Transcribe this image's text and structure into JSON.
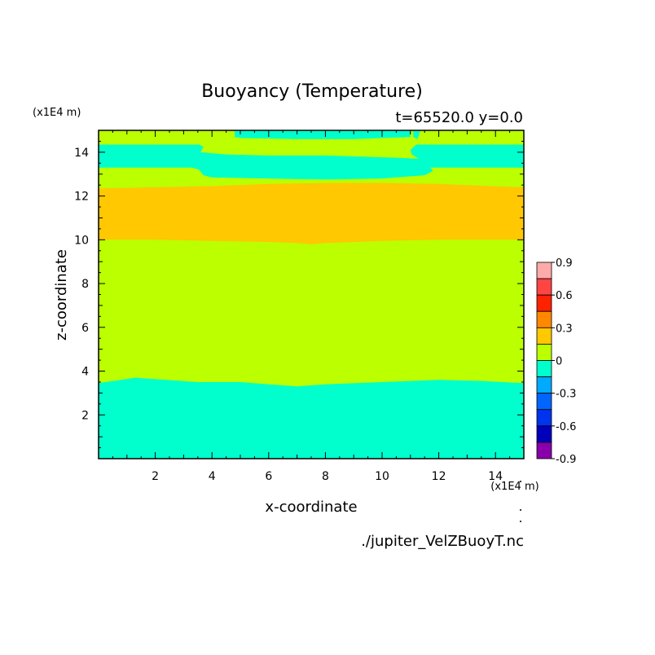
{
  "chart_data": {
    "type": "heatmap",
    "title": "Buoyancy (Temperature)",
    "subtitle": "t=65520.0 y=0.0",
    "xlabel": "x-coordinate",
    "ylabel": "z-coordinate",
    "x_unit": "(x1E4 m)",
    "y_unit": "(x1E4 m)",
    "xlim": [
      0,
      15
    ],
    "ylim": [
      0,
      15
    ],
    "x_ticks": [
      "2",
      "4",
      "6",
      "8",
      "10",
      "12",
      "14"
    ],
    "y_ticks": [
      "2",
      "4",
      "6",
      "8",
      "10",
      "12",
      "14"
    ],
    "background_level": "0 to 0.15",
    "regions": [
      {
        "name": "lower-cyan-layer",
        "level": "-0.15 to 0",
        "color": "#00ffcc",
        "polygon": [
          [
            0,
            0
          ],
          [
            15,
            0
          ],
          [
            15,
            3.45
          ],
          [
            13.5,
            3.55
          ],
          [
            12,
            3.6
          ],
          [
            10,
            3.5
          ],
          [
            8,
            3.4
          ],
          [
            7,
            3.3
          ],
          [
            6,
            3.4
          ],
          [
            5,
            3.5
          ],
          [
            3.5,
            3.5
          ],
          [
            1.3,
            3.7
          ],
          [
            0,
            3.45
          ]
        ]
      },
      {
        "name": "warm-band",
        "level": "0.15 to 0.3",
        "color": "#ffc800",
        "polygon": [
          [
            0,
            10
          ],
          [
            2,
            10
          ],
          [
            4,
            9.95
          ],
          [
            6,
            9.9
          ],
          [
            7,
            9.85
          ],
          [
            7.5,
            9.8
          ],
          [
            8,
            9.85
          ],
          [
            9,
            9.9
          ],
          [
            10,
            9.95
          ],
          [
            12,
            10
          ],
          [
            15,
            10
          ],
          [
            15,
            12.4
          ],
          [
            13,
            12.5
          ],
          [
            12,
            12.55
          ],
          [
            10,
            12.6
          ],
          [
            8,
            12.6
          ],
          [
            6,
            12.55
          ],
          [
            4,
            12.45
          ],
          [
            2,
            12.4
          ],
          [
            0,
            12.35
          ]
        ]
      },
      {
        "name": "upper-cyan-band",
        "level": "-0.15 to 0",
        "color": "#00ffcc",
        "polygon": [
          [
            0,
            13.3
          ],
          [
            3.3,
            13.3
          ],
          [
            3.55,
            13.2
          ],
          [
            3.7,
            12.95
          ],
          [
            4,
            12.85
          ],
          [
            6,
            12.8
          ],
          [
            8,
            12.75
          ],
          [
            10,
            12.8
          ],
          [
            11.5,
            12.95
          ],
          [
            11.8,
            13.15
          ],
          [
            11.7,
            13.3
          ],
          [
            15,
            13.3
          ],
          [
            15,
            14.35
          ],
          [
            11.2,
            14.35
          ],
          [
            11,
            14.1
          ],
          [
            11.05,
            13.9
          ],
          [
            11.3,
            13.7
          ],
          [
            10.5,
            13.75
          ],
          [
            8,
            13.85
          ],
          [
            6,
            13.85
          ],
          [
            4.5,
            13.9
          ],
          [
            3.6,
            14.0
          ],
          [
            3.7,
            14.25
          ],
          [
            3.55,
            14.35
          ],
          [
            0,
            14.35
          ]
        ]
      },
      {
        "name": "top-cyan-cap",
        "level": "-0.15 to 0",
        "color": "#00ffcc",
        "polygon": [
          [
            4.8,
            15
          ],
          [
            11,
            15
          ],
          [
            11,
            14.7
          ],
          [
            9,
            14.6
          ],
          [
            7,
            14.6
          ],
          [
            5,
            14.65
          ],
          [
            4.8,
            14.7
          ]
        ]
      },
      {
        "name": "top-left-green-notch",
        "level": "0 to 0.15",
        "color": "#bbff00",
        "polygon": [
          [
            3.9,
            15
          ],
          [
            4.8,
            15
          ],
          [
            4.8,
            14.7
          ],
          [
            3.9,
            14.7
          ]
        ]
      },
      {
        "name": "top-right-cyan-notch",
        "level": "-0.15 to 0",
        "color": "#00ffcc",
        "polygon": [
          [
            11.1,
            15
          ],
          [
            11.1,
            14.7
          ],
          [
            11.25,
            14.6
          ],
          [
            11.35,
            15
          ]
        ]
      }
    ],
    "colorbar": {
      "ticks": [
        "0.9",
        "0.6",
        "0.3",
        "0",
        "-0.3",
        "-0.6",
        "-0.9"
      ],
      "levels": [
        {
          "range": "0.75 to 0.9",
          "color": "#ffaaaa"
        },
        {
          "range": "0.6 to 0.75",
          "color": "#ff4444"
        },
        {
          "range": "0.45 to 0.6",
          "color": "#ff2200"
        },
        {
          "range": "0.3 to 0.45",
          "color": "#ff8800"
        },
        {
          "range": "0.15 to 0.3",
          "color": "#ffc800"
        },
        {
          "range": "0 to 0.15",
          "color": "#bbff00"
        },
        {
          "range": "-0.15 to 0",
          "color": "#00ffcc"
        },
        {
          "range": "-0.3 to -0.15",
          "color": "#00aaff"
        },
        {
          "range": "-0.45 to -0.3",
          "color": "#0066ff"
        },
        {
          "range": "-0.6 to -0.45",
          "color": "#0033ee"
        },
        {
          "range": "-0.75 to -0.6",
          "color": "#0000bb"
        },
        {
          "range": "-0.9 to -0.75",
          "color": "#8800aa"
        }
      ]
    },
    "footer": "./jupiter_VelZBuoyT.nc",
    "grid": false
  }
}
